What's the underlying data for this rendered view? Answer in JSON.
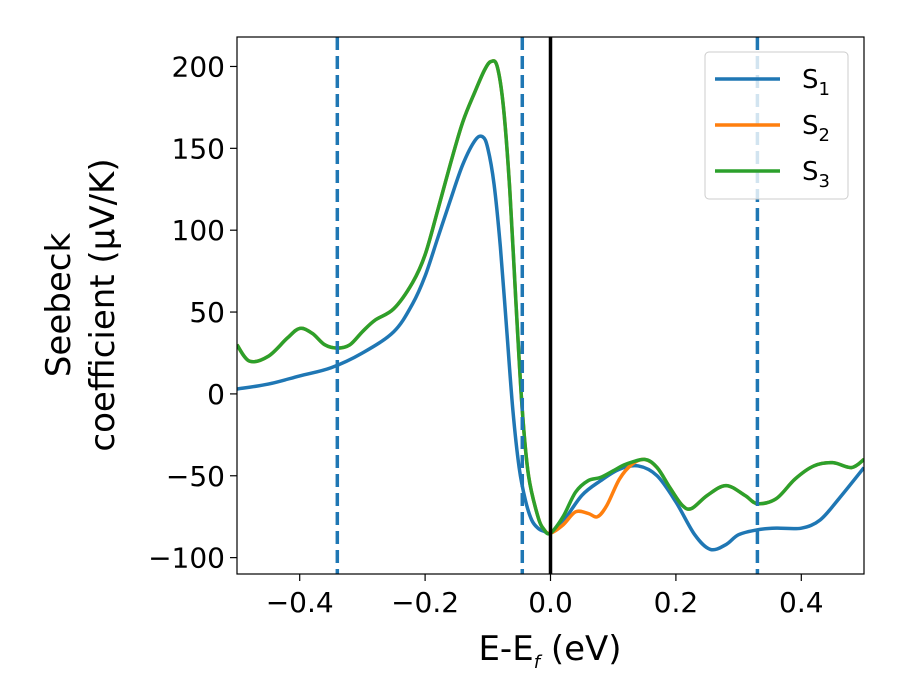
{
  "chart_data": {
    "type": "line",
    "title": "",
    "xlabel": {
      "main": "E-E",
      "sub": "f",
      "unit": " (eV)"
    },
    "ylabel": {
      "line1": "Seebeck",
      "line2": "coefficient  (μV/K)"
    },
    "xlim": [
      -0.5,
      0.5
    ],
    "ylim": [
      -110,
      218
    ],
    "xticks": [
      -0.4,
      -0.2,
      0.0,
      0.2,
      0.4
    ],
    "xtick_labels": [
      "−0.4",
      "−0.2",
      "0.0",
      "0.2",
      "0.4"
    ],
    "yticks": [
      -100,
      -50,
      0,
      50,
      100,
      150,
      200
    ],
    "ytick_labels": [
      "−100",
      "−50",
      "0",
      "50",
      "100",
      "150",
      "200"
    ],
    "grid": false,
    "legend_position": "top-right",
    "vertical_lines": [
      {
        "x": -0.34,
        "style": "dashed",
        "color": "#1f77b4"
      },
      {
        "x": -0.045,
        "style": "dashed",
        "color": "#1f77b4"
      },
      {
        "x": 0.0,
        "style": "solid",
        "color": "#000000"
      },
      {
        "x": 0.33,
        "style": "dashed",
        "color": "#1f77b4"
      }
    ],
    "series": [
      {
        "name": "S",
        "sub": "1",
        "color": "#1f77b4",
        "points": [
          [
            -0.5,
            3
          ],
          [
            -0.45,
            6
          ],
          [
            -0.4,
            11
          ],
          [
            -0.35,
            16
          ],
          [
            -0.3,
            25
          ],
          [
            -0.25,
            38
          ],
          [
            -0.22,
            55
          ],
          [
            -0.2,
            72
          ],
          [
            -0.18,
            95
          ],
          [
            -0.16,
            118
          ],
          [
            -0.14,
            140
          ],
          [
            -0.12,
            155
          ],
          [
            -0.108,
            157
          ],
          [
            -0.1,
            150
          ],
          [
            -0.09,
            128
          ],
          [
            -0.08,
            90
          ],
          [
            -0.07,
            40
          ],
          [
            -0.06,
            -10
          ],
          [
            -0.05,
            -45
          ],
          [
            -0.04,
            -65
          ],
          [
            -0.03,
            -77
          ],
          [
            -0.02,
            -82
          ],
          [
            -0.01,
            -84
          ],
          [
            0.0,
            -85
          ],
          [
            0.02,
            -78
          ],
          [
            0.05,
            -62
          ],
          [
            0.08,
            -53
          ],
          [
            0.11,
            -46
          ],
          [
            0.14,
            -44
          ],
          [
            0.17,
            -50
          ],
          [
            0.2,
            -66
          ],
          [
            0.23,
            -86
          ],
          [
            0.255,
            -95
          ],
          [
            0.28,
            -92
          ],
          [
            0.3,
            -86
          ],
          [
            0.33,
            -83
          ],
          [
            0.36,
            -82
          ],
          [
            0.4,
            -82
          ],
          [
            0.43,
            -77
          ],
          [
            0.46,
            -64
          ],
          [
            0.5,
            -45
          ]
        ]
      },
      {
        "name": "S",
        "sub": "2",
        "color": "#ff7f0e",
        "points": [
          [
            -0.5,
            30
          ],
          [
            -0.48,
            20
          ],
          [
            -0.45,
            23
          ],
          [
            -0.42,
            34
          ],
          [
            -0.4,
            40
          ],
          [
            -0.38,
            37
          ],
          [
            -0.36,
            30
          ],
          [
            -0.34,
            28
          ],
          [
            -0.32,
            30
          ],
          [
            -0.3,
            38
          ],
          [
            -0.28,
            45
          ],
          [
            -0.25,
            52
          ],
          [
            -0.22,
            68
          ],
          [
            -0.2,
            85
          ],
          [
            -0.18,
            112
          ],
          [
            -0.16,
            140
          ],
          [
            -0.14,
            166
          ],
          [
            -0.12,
            185
          ],
          [
            -0.105,
            198
          ],
          [
            -0.095,
            203
          ],
          [
            -0.085,
            200
          ],
          [
            -0.075,
            175
          ],
          [
            -0.065,
            125
          ],
          [
            -0.055,
            55
          ],
          [
            -0.045,
            -10
          ],
          [
            -0.035,
            -50
          ],
          [
            -0.02,
            -75
          ],
          [
            -0.01,
            -83
          ],
          [
            0.0,
            -85
          ],
          [
            0.02,
            -80
          ],
          [
            0.04,
            -72
          ],
          [
            0.06,
            -73
          ],
          [
            0.075,
            -75
          ],
          [
            0.09,
            -68
          ],
          [
            0.11,
            -52
          ],
          [
            0.13,
            -43
          ],
          [
            0.15,
            -40
          ],
          [
            0.17,
            -45
          ],
          [
            0.19,
            -57
          ],
          [
            0.21,
            -68
          ],
          [
            0.225,
            -70
          ],
          [
            0.25,
            -62
          ],
          [
            0.28,
            -56
          ],
          [
            0.31,
            -62
          ],
          [
            0.33,
            -67
          ],
          [
            0.36,
            -64
          ],
          [
            0.39,
            -52
          ],
          [
            0.42,
            -44
          ],
          [
            0.45,
            -42
          ],
          [
            0.48,
            -45
          ],
          [
            0.5,
            -40
          ]
        ]
      },
      {
        "name": "S",
        "sub": "3",
        "color": "#2ca02c",
        "points": [
          [
            -0.5,
            30
          ],
          [
            -0.48,
            20
          ],
          [
            -0.45,
            23
          ],
          [
            -0.42,
            34
          ],
          [
            -0.4,
            40
          ],
          [
            -0.38,
            37
          ],
          [
            -0.36,
            30
          ],
          [
            -0.34,
            28
          ],
          [
            -0.32,
            30
          ],
          [
            -0.3,
            38
          ],
          [
            -0.28,
            45
          ],
          [
            -0.25,
            52
          ],
          [
            -0.22,
            68
          ],
          [
            -0.2,
            85
          ],
          [
            -0.18,
            112
          ],
          [
            -0.16,
            140
          ],
          [
            -0.14,
            166
          ],
          [
            -0.12,
            185
          ],
          [
            -0.105,
            198
          ],
          [
            -0.095,
            203
          ],
          [
            -0.085,
            200
          ],
          [
            -0.075,
            175
          ],
          [
            -0.065,
            125
          ],
          [
            -0.055,
            55
          ],
          [
            -0.045,
            -10
          ],
          [
            -0.035,
            -50
          ],
          [
            -0.02,
            -75
          ],
          [
            -0.01,
            -83
          ],
          [
            0.0,
            -85
          ],
          [
            0.02,
            -75
          ],
          [
            0.04,
            -60
          ],
          [
            0.06,
            -53
          ],
          [
            0.08,
            -51
          ],
          [
            0.1,
            -47
          ],
          [
            0.12,
            -43
          ],
          [
            0.15,
            -40
          ],
          [
            0.17,
            -45
          ],
          [
            0.19,
            -57
          ],
          [
            0.21,
            -68
          ],
          [
            0.225,
            -70
          ],
          [
            0.25,
            -62
          ],
          [
            0.28,
            -56
          ],
          [
            0.31,
            -62
          ],
          [
            0.33,
            -67
          ],
          [
            0.36,
            -64
          ],
          [
            0.39,
            -52
          ],
          [
            0.42,
            -44
          ],
          [
            0.45,
            -42
          ],
          [
            0.48,
            -45
          ],
          [
            0.5,
            -40
          ]
        ]
      }
    ]
  }
}
